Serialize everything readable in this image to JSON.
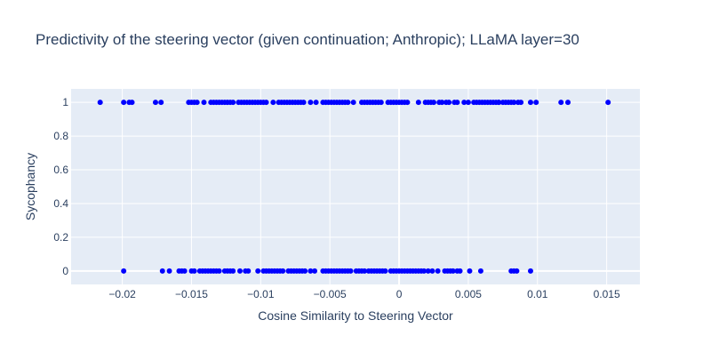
{
  "chart_data": {
    "type": "scatter",
    "title": "Predictivity of the steering vector (given continuation; Anthropic); LLaMA layer=30",
    "xlabel": "Cosine Similarity to Steering Vector",
    "ylabel": "Sycophancy",
    "xlim": [
      -0.0237,
      0.0174
    ],
    "ylim": [
      -0.08,
      1.08
    ],
    "x_ticks": [
      -0.02,
      -0.015,
      -0.01,
      -0.005,
      0,
      0.005,
      0.01,
      0.015
    ],
    "x_tick_labels": [
      "−0.02",
      "−0.015",
      "−0.01",
      "−0.005",
      "0",
      "0.005",
      "0.01",
      "0.015"
    ],
    "y_ticks": [
      0,
      0.2,
      0.4,
      0.6,
      0.8,
      1
    ],
    "y_tick_labels": [
      "0",
      "0.2",
      "0.4",
      "0.6",
      "0.8",
      "1"
    ],
    "grid": true,
    "background": "#e5ecf6",
    "marker_color": "#0000ff",
    "series": [
      {
        "y": 1,
        "x": [
          -0.0216,
          -0.0199,
          -0.0195,
          -0.0193,
          -0.0176,
          -0.0172,
          -0.0152,
          -0.015,
          -0.0148,
          -0.0146,
          -0.0141,
          -0.0136,
          -0.0134,
          -0.0132,
          -0.013,
          -0.0128,
          -0.0126,
          -0.0124,
          -0.0122,
          -0.012,
          -0.0116,
          -0.0114,
          -0.0112,
          -0.011,
          -0.0108,
          -0.0106,
          -0.0104,
          -0.0102,
          -0.01,
          -0.0098,
          -0.0096,
          -0.0091,
          -0.0087,
          -0.0085,
          -0.0083,
          -0.0081,
          -0.0079,
          -0.0077,
          -0.0075,
          -0.0073,
          -0.0071,
          -0.0069,
          -0.0064,
          -0.006,
          -0.0055,
          -0.0053,
          -0.0051,
          -0.0049,
          -0.0047,
          -0.0045,
          -0.0043,
          -0.0041,
          -0.0039,
          -0.0037,
          -0.0033,
          -0.0027,
          -0.0025,
          -0.0023,
          -0.0021,
          -0.0019,
          -0.0017,
          -0.0015,
          -0.0013,
          -0.0008,
          -0.0006,
          -0.0004,
          -0.0002,
          0.0,
          0.0002,
          0.0004,
          0.0006,
          0.0014,
          0.0019,
          0.0021,
          0.0023,
          0.0025,
          0.0029,
          0.0031,
          0.0034,
          0.0036,
          0.004,
          0.0042,
          0.0047,
          0.005,
          0.0054,
          0.0056,
          0.0058,
          0.006,
          0.0062,
          0.0064,
          0.0066,
          0.0068,
          0.007,
          0.0072,
          0.0072,
          0.0075,
          0.0077,
          0.0079,
          0.0081,
          0.0083,
          0.0086,
          0.0088,
          0.0095,
          0.0099,
          0.0117,
          0.0122,
          0.0151
        ]
      },
      {
        "y": 0,
        "x": [
          -0.0199,
          -0.0171,
          -0.0166,
          -0.0159,
          -0.0157,
          -0.0155,
          -0.015,
          -0.0148,
          -0.0144,
          -0.0142,
          -0.014,
          -0.0138,
          -0.0136,
          -0.0134,
          -0.0132,
          -0.013,
          -0.0126,
          -0.0124,
          -0.0122,
          -0.012,
          -0.0115,
          -0.0111,
          -0.0109,
          -0.0102,
          -0.0098,
          -0.0096,
          -0.0094,
          -0.0092,
          -0.009,
          -0.0088,
          -0.0086,
          -0.0084,
          -0.008,
          -0.0078,
          -0.0076,
          -0.0074,
          -0.0072,
          -0.007,
          -0.0068,
          -0.0064,
          -0.0061,
          -0.0055,
          -0.0053,
          -0.0051,
          -0.0049,
          -0.0047,
          -0.0045,
          -0.0043,
          -0.0041,
          -0.0039,
          -0.0037,
          -0.0035,
          -0.0031,
          -0.0029,
          -0.0027,
          -0.0025,
          -0.0022,
          -0.002,
          -0.0018,
          -0.0016,
          -0.0014,
          -0.0012,
          -0.001,
          -0.0006,
          -0.0004,
          -0.0002,
          0.0,
          0.0002,
          0.0004,
          0.0006,
          0.0008,
          0.001,
          0.0012,
          0.0014,
          0.0016,
          0.0018,
          0.0021,
          0.0024,
          0.0028,
          0.0033,
          0.0035,
          0.0037,
          0.0039,
          0.0042,
          0.0044,
          0.0051,
          0.0059,
          0.0081,
          0.0083,
          0.0085,
          0.0095
        ]
      }
    ]
  }
}
